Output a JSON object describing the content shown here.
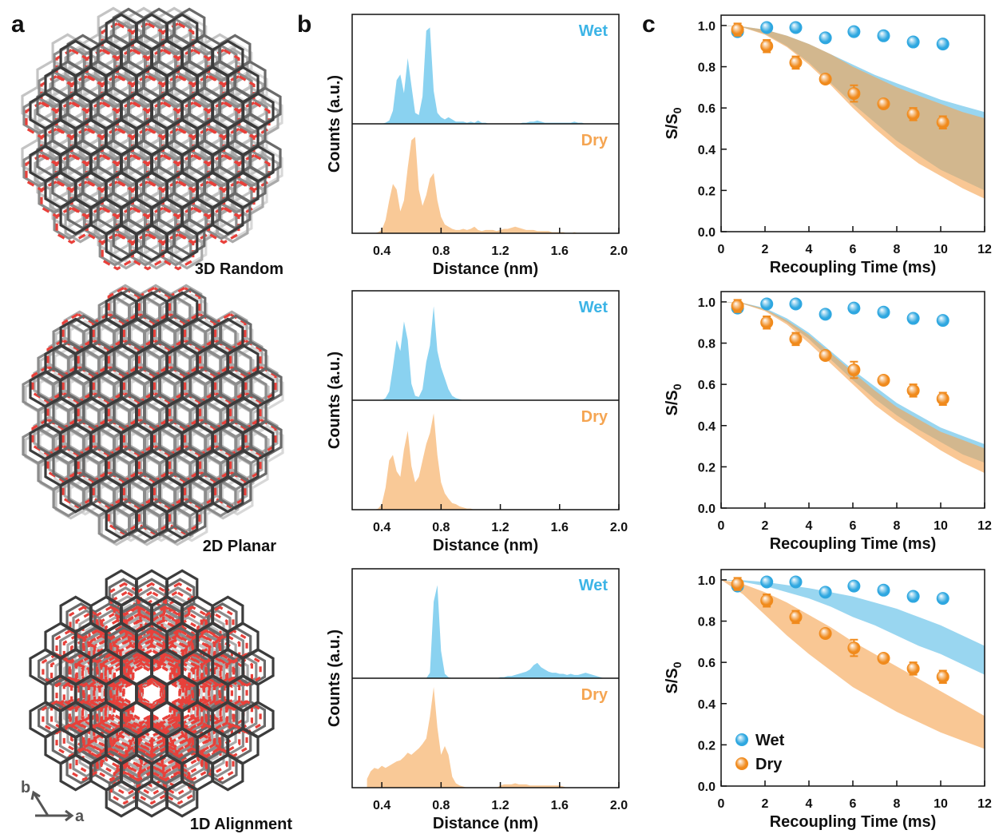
{
  "panel_labels": [
    "a",
    "b",
    "c"
  ],
  "structures": [
    "3D Random",
    "2D Planar",
    "1D Alignment"
  ],
  "lattice_axes": [
    "b",
    "a"
  ],
  "chart_data": [
    {
      "type": "area",
      "xlabel": "Distance (nm)",
      "ylabel": "Counts (a.u.)",
      "x": [
        0.3,
        0.325,
        0.35,
        0.375,
        0.4,
        0.425,
        0.45,
        0.475,
        0.5,
        0.525,
        0.55,
        0.575,
        0.6,
        0.625,
        0.65,
        0.675,
        0.7,
        0.725,
        0.75,
        0.775,
        0.8,
        0.825,
        0.85,
        0.875,
        0.9,
        0.925,
        0.95,
        0.975,
        1.0,
        1.025,
        1.05,
        1.075,
        1.1,
        1.125,
        1.15,
        1.175,
        1.2,
        1.225,
        1.25,
        1.275,
        1.3,
        1.325,
        1.35,
        1.375,
        1.4,
        1.425,
        1.45,
        1.475,
        1.5,
        1.525,
        1.55,
        1.575,
        1.6,
        1.625,
        1.65,
        1.675,
        1.7,
        1.725,
        1.75,
        1.775,
        1.8,
        1.825,
        1.85,
        1.875,
        1.9
      ],
      "xlim": [
        0.2,
        2.0
      ],
      "xticks": [
        0.4,
        0.8,
        1.2,
        1.6,
        {
          "value": 2,
          "label": "2.0"
        }
      ],
      "ylim": [
        0,
        100
      ],
      "series": [
        {
          "name": "Wet",
          "color": "#3cb4e6",
          "values": [
            0,
            0,
            0,
            0,
            0,
            1,
            3,
            12,
            40,
            45,
            28,
            60,
            35,
            10,
            8,
            25,
            85,
            88,
            30,
            10,
            6,
            4,
            6,
            4,
            2,
            2,
            2,
            1,
            2,
            1,
            3,
            1,
            1,
            0,
            0,
            0,
            0,
            0,
            0,
            0,
            0,
            0,
            1,
            1,
            2,
            2,
            3,
            2,
            1,
            1,
            1,
            1,
            1,
            1,
            1,
            1,
            2,
            1,
            1,
            0,
            0,
            0,
            0,
            0,
            0
          ]
        },
        {
          "name": "Dry",
          "color": "#f5a552",
          "values": [
            0,
            0,
            0,
            1,
            3,
            12,
            30,
            45,
            40,
            20,
            30,
            60,
            85,
            88,
            40,
            25,
            35,
            50,
            55,
            30,
            15,
            8,
            6,
            4,
            3,
            3,
            4,
            3,
            4,
            6,
            3,
            2,
            3,
            3,
            3,
            2,
            3,
            4,
            4,
            5,
            6,
            5,
            4,
            3,
            3,
            3,
            2,
            2,
            2,
            2,
            1,
            1,
            1,
            1,
            0,
            0,
            1,
            0,
            0,
            0,
            0,
            0,
            0,
            0,
            0
          ]
        }
      ]
    },
    {
      "type": "scatter",
      "xlabel": "Recoupling Time (ms)",
      "ylabel": "S/S",
      "ylabel_subscript": "0",
      "x": [
        0.75,
        2.08,
        3.4,
        4.75,
        6.05,
        7.4,
        8.75,
        10.1
      ],
      "xlim": [
        0,
        12
      ],
      "xticks": [
        0,
        2,
        4,
        6,
        8,
        10,
        12
      ],
      "ylim": [
        0,
        1.05
      ],
      "yticks": [
        {
          "value": 0,
          "label": "0.0"
        },
        0.2,
        0.4,
        0.6,
        0.8,
        {
          "value": 1,
          "label": "1.0"
        }
      ],
      "series": [
        {
          "name": "Wet",
          "color": "#2ea7e0",
          "values": [
            0.97,
            0.99,
            0.99,
            0.94,
            0.97,
            0.95,
            0.92,
            0.91
          ]
        },
        {
          "name": "Dry",
          "color": "#f08a1c",
          "values": [
            0.98,
            0.9,
            0.82,
            0.74,
            0.67,
            0.62,
            0.57,
            0.53
          ],
          "errors": [
            0.03,
            0.03,
            0.03,
            0.02,
            0.04,
            0.02,
            0.03,
            0.03
          ]
        }
      ],
      "band_x": [
        0,
        1,
        2,
        3,
        4,
        5,
        6,
        7,
        8,
        9,
        10,
        11,
        12
      ],
      "bands": [
        {
          "color": "#5bbde6",
          "upper": [
            1.0,
            0.995,
            0.98,
            0.95,
            0.91,
            0.86,
            0.81,
            0.76,
            0.72,
            0.68,
            0.64,
            0.61,
            0.58
          ],
          "lower": [
            1.0,
            0.99,
            0.96,
            0.9,
            0.82,
            0.72,
            0.62,
            0.53,
            0.44,
            0.37,
            0.3,
            0.25,
            0.2
          ]
        },
        {
          "color": "#f5a552",
          "upper": [
            1.0,
            0.995,
            0.98,
            0.95,
            0.91,
            0.86,
            0.8,
            0.75,
            0.7,
            0.66,
            0.62,
            0.58,
            0.55
          ],
          "lower": [
            1.0,
            0.99,
            0.955,
            0.895,
            0.81,
            0.71,
            0.6,
            0.5,
            0.41,
            0.33,
            0.27,
            0.21,
            0.16
          ]
        }
      ]
    },
    {
      "type": "area",
      "xlabel": "Distance (nm)",
      "ylabel": "Counts (a.u.)",
      "x": [
        0.3,
        0.325,
        0.35,
        0.375,
        0.4,
        0.425,
        0.45,
        0.475,
        0.5,
        0.525,
        0.55,
        0.575,
        0.6,
        0.625,
        0.65,
        0.675,
        0.7,
        0.725,
        0.75,
        0.775,
        0.8,
        0.825,
        0.85,
        0.875,
        0.9,
        0.925,
        0.95,
        0.975,
        1.0,
        1.025,
        1.05,
        1.075,
        1.1,
        1.125,
        1.15,
        1.175,
        1.2,
        1.225,
        1.25,
        1.275,
        1.3,
        1.325,
        1.35,
        1.375,
        1.4,
        1.425,
        1.45,
        1.475,
        1.5,
        1.525,
        1.55,
        1.575,
        1.6,
        1.625,
        1.65,
        1.675,
        1.7,
        1.725,
        1.75,
        1.775,
        1.8,
        1.825,
        1.85,
        1.875,
        1.9
      ],
      "xlim": [
        0.2,
        2.0
      ],
      "xticks": [
        0.4,
        0.8,
        1.2,
        1.6,
        {
          "value": 2,
          "label": "2.0"
        }
      ],
      "ylim": [
        0,
        100
      ],
      "series": [
        {
          "name": "Wet",
          "color": "#3cb4e6",
          "values": [
            0,
            0,
            0,
            0,
            0,
            2,
            8,
            30,
            55,
            45,
            72,
            55,
            15,
            4,
            3,
            10,
            35,
            50,
            86,
            45,
            30,
            20,
            10,
            4,
            2,
            1,
            0,
            0,
            0,
            0,
            0,
            0,
            0,
            0,
            0,
            0,
            0,
            0,
            0,
            0,
            0,
            0,
            0,
            0,
            0,
            0,
            0,
            0,
            0,
            0,
            0,
            0,
            0,
            0,
            0,
            0,
            0,
            0,
            0,
            0,
            0,
            0,
            0,
            0,
            0
          ]
        },
        {
          "name": "Dry",
          "color": "#f5a552",
          "values": [
            0,
            0,
            0,
            1,
            5,
            20,
            45,
            50,
            35,
            30,
            55,
            72,
            40,
            25,
            30,
            45,
            60,
            70,
            88,
            50,
            25,
            15,
            10,
            6,
            5,
            3,
            2,
            1,
            1,
            0,
            0,
            0,
            0,
            0,
            0,
            0,
            0,
            0,
            0,
            0,
            0,
            0,
            0,
            0,
            0,
            0,
            0,
            0,
            0,
            0,
            0,
            0,
            0,
            0,
            0,
            0,
            0,
            0,
            0,
            0,
            0,
            0,
            0,
            0,
            0
          ]
        }
      ]
    },
    {
      "type": "scatter",
      "xlabel": "Recoupling Time (ms)",
      "ylabel": "S/S",
      "ylabel_subscript": "0",
      "x": [
        0.75,
        2.08,
        3.4,
        4.75,
        6.05,
        7.4,
        8.75,
        10.1
      ],
      "xlim": [
        0,
        12
      ],
      "xticks": [
        0,
        2,
        4,
        6,
        8,
        10,
        12
      ],
      "ylim": [
        0,
        1.05
      ],
      "yticks": [
        {
          "value": 0,
          "label": "0.0"
        },
        0.2,
        0.4,
        0.6,
        0.8,
        {
          "value": 1,
          "label": "1.0"
        }
      ],
      "series": [
        {
          "name": "Wet",
          "color": "#2ea7e0",
          "values": [
            0.97,
            0.99,
            0.99,
            0.94,
            0.97,
            0.95,
            0.92,
            0.91
          ]
        },
        {
          "name": "Dry",
          "color": "#f08a1c",
          "values": [
            0.98,
            0.9,
            0.82,
            0.74,
            0.67,
            0.62,
            0.57,
            0.53
          ],
          "errors": [
            0.03,
            0.03,
            0.03,
            0.02,
            0.04,
            0.02,
            0.03,
            0.03
          ]
        }
      ],
      "band_x": [
        0,
        1,
        2,
        3,
        4,
        5,
        6,
        7,
        8,
        9,
        10,
        11,
        12
      ],
      "bands": [
        {
          "color": "#5bbde6",
          "upper": [
            1.0,
            0.995,
            0.97,
            0.92,
            0.85,
            0.76,
            0.67,
            0.59,
            0.51,
            0.45,
            0.39,
            0.35,
            0.31
          ],
          "lower": [
            1.0,
            0.99,
            0.96,
            0.9,
            0.82,
            0.72,
            0.62,
            0.53,
            0.45,
            0.38,
            0.32,
            0.26,
            0.22
          ]
        },
        {
          "color": "#f5a552",
          "upper": [
            1.0,
            0.995,
            0.965,
            0.91,
            0.84,
            0.75,
            0.66,
            0.57,
            0.49,
            0.43,
            0.37,
            0.33,
            0.29
          ],
          "lower": [
            1.0,
            0.99,
            0.955,
            0.89,
            0.8,
            0.7,
            0.6,
            0.5,
            0.42,
            0.35,
            0.28,
            0.22,
            0.17
          ]
        }
      ]
    },
    {
      "type": "area",
      "xlabel": "Distance (nm)",
      "ylabel": "Counts (a.u.)",
      "x": [
        0.3,
        0.325,
        0.35,
        0.375,
        0.4,
        0.425,
        0.45,
        0.475,
        0.5,
        0.525,
        0.55,
        0.575,
        0.6,
        0.625,
        0.65,
        0.675,
        0.7,
        0.725,
        0.75,
        0.775,
        0.8,
        0.825,
        0.85,
        0.875,
        0.9,
        0.925,
        0.95,
        0.975,
        1.0,
        1.025,
        1.05,
        1.075,
        1.1,
        1.125,
        1.15,
        1.175,
        1.2,
        1.225,
        1.25,
        1.275,
        1.3,
        1.325,
        1.35,
        1.375,
        1.4,
        1.425,
        1.45,
        1.475,
        1.5,
        1.525,
        1.55,
        1.575,
        1.6,
        1.625,
        1.65,
        1.675,
        1.7,
        1.725,
        1.75,
        1.775,
        1.8,
        1.825,
        1.85,
        1.875,
        1.9
      ],
      "xlim": [
        0.2,
        2.0
      ],
      "xticks": [
        0.4,
        0.8,
        1.2,
        1.6,
        {
          "value": 2,
          "label": "2.0"
        }
      ],
      "ylim": [
        0,
        100
      ],
      "series": [
        {
          "name": "Wet",
          "color": "#3cb4e6",
          "values": [
            0,
            0,
            0,
            0,
            0,
            0,
            0,
            0,
            0,
            0,
            0,
            0,
            0,
            0,
            0,
            0,
            0,
            5,
            70,
            85,
            25,
            4,
            1,
            0,
            0,
            0,
            0,
            0,
            0,
            0,
            0,
            0,
            0,
            0,
            0,
            0,
            1,
            1,
            2,
            2,
            3,
            4,
            5,
            6,
            8,
            12,
            14,
            10,
            8,
            6,
            5,
            5,
            4,
            4,
            3,
            4,
            3,
            3,
            4,
            5,
            4,
            3,
            2,
            1,
            0
          ]
        },
        {
          "name": "Dry",
          "color": "#f5a552",
          "values": [
            8,
            15,
            18,
            17,
            20,
            18,
            20,
            22,
            24,
            25,
            28,
            32,
            30,
            33,
            36,
            40,
            45,
            65,
            92,
            55,
            30,
            38,
            30,
            10,
            4,
            2,
            1,
            0,
            0,
            0,
            0,
            0,
            0,
            0,
            0,
            0,
            2,
            3,
            3,
            3,
            4,
            3,
            3,
            3,
            2,
            2,
            2,
            2,
            2,
            2,
            2,
            2,
            2,
            1,
            0,
            0,
            0,
            0,
            0,
            0,
            0,
            0,
            0,
            0,
            0
          ]
        }
      ]
    },
    {
      "type": "scatter",
      "xlabel": "Recoupling Time (ms)",
      "ylabel": "S/S",
      "ylabel_subscript": "0",
      "x": [
        0.75,
        2.08,
        3.4,
        4.75,
        6.05,
        7.4,
        8.75,
        10.1
      ],
      "xlim": [
        0,
        12
      ],
      "xticks": [
        0,
        2,
        4,
        6,
        8,
        10,
        12
      ],
      "ylim": [
        0,
        1.05
      ],
      "yticks": [
        {
          "value": 0,
          "label": "0.0"
        },
        0.2,
        0.4,
        0.6,
        0.8,
        {
          "value": 1,
          "label": "1.0"
        }
      ],
      "legend": "lower left",
      "series": [
        {
          "name": "Wet",
          "color": "#2ea7e0",
          "values": [
            0.97,
            0.99,
            0.99,
            0.94,
            0.97,
            0.95,
            0.92,
            0.91
          ]
        },
        {
          "name": "Dry",
          "color": "#f08a1c",
          "values": [
            0.98,
            0.9,
            0.82,
            0.74,
            0.67,
            0.62,
            0.57,
            0.53
          ],
          "errors": [
            0.03,
            0.03,
            0.03,
            0.02,
            0.04,
            0.02,
            0.03,
            0.03
          ]
        }
      ],
      "band_x": [
        0,
        1,
        2,
        3,
        4,
        5,
        6,
        7,
        8,
        9,
        10,
        11,
        12
      ],
      "bands": [
        {
          "color": "#5bbde6",
          "upper": [
            1.0,
            0.998,
            0.99,
            0.975,
            0.96,
            0.94,
            0.92,
            0.89,
            0.86,
            0.82,
            0.78,
            0.73,
            0.68
          ],
          "lower": [
            1.0,
            0.99,
            0.97,
            0.94,
            0.91,
            0.87,
            0.82,
            0.78,
            0.73,
            0.68,
            0.64,
            0.59,
            0.54
          ]
        },
        {
          "color": "#f5a552",
          "upper": [
            1.0,
            0.98,
            0.94,
            0.89,
            0.83,
            0.77,
            0.7,
            0.64,
            0.58,
            0.52,
            0.46,
            0.4,
            0.34
          ],
          "lower": [
            1.0,
            0.93,
            0.83,
            0.73,
            0.64,
            0.56,
            0.48,
            0.42,
            0.36,
            0.31,
            0.26,
            0.22,
            0.18
          ]
        }
      ]
    }
  ]
}
